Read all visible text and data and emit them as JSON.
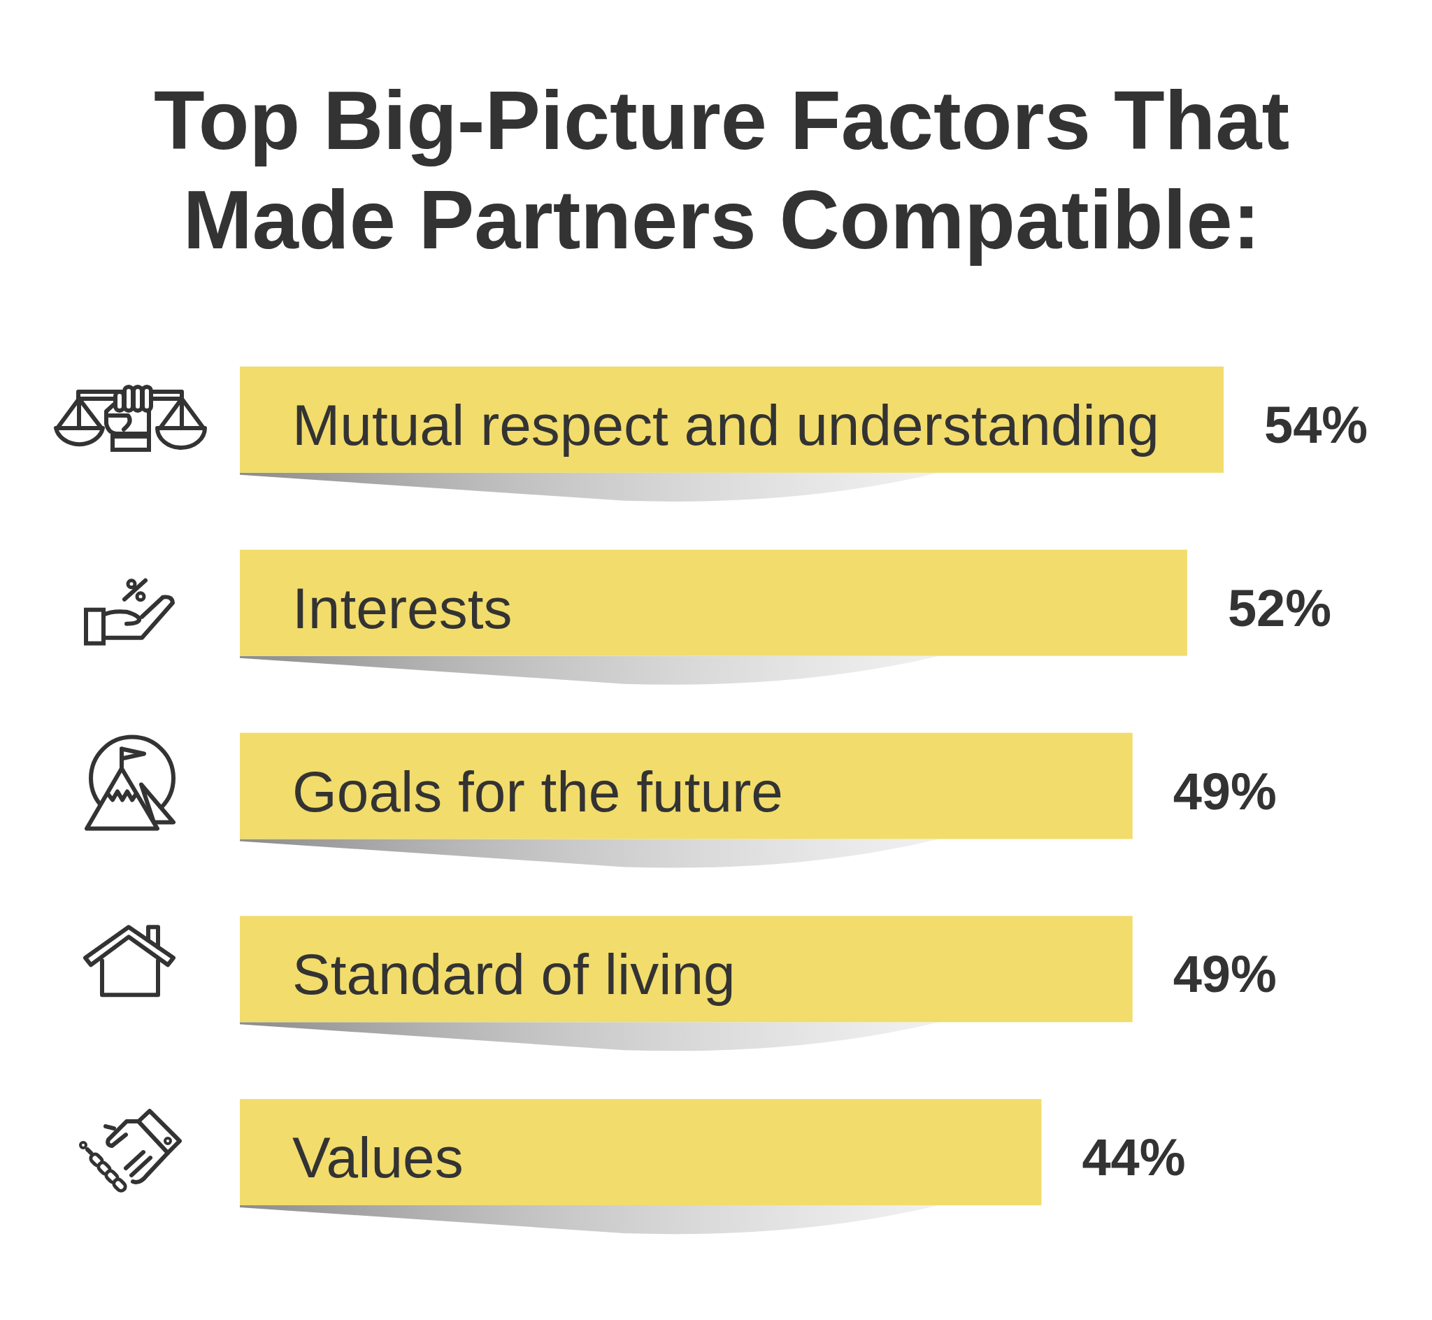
{
  "chart_data": {
    "type": "bar",
    "orientation": "horizontal",
    "title": "Top Big-Picture Factors That Made Partners Compatible:",
    "categories": [
      "Mutual respect and understanding",
      "Interests",
      "Goals for the future",
      "Standard of living",
      "Values"
    ],
    "values": [
      54,
      52,
      49,
      49,
      44
    ],
    "color": "#f2dc6c",
    "value_labels": [
      "54%",
      "52%",
      "49%",
      "49%",
      "44%"
    ],
    "tick_labels": "y"
  }
}
